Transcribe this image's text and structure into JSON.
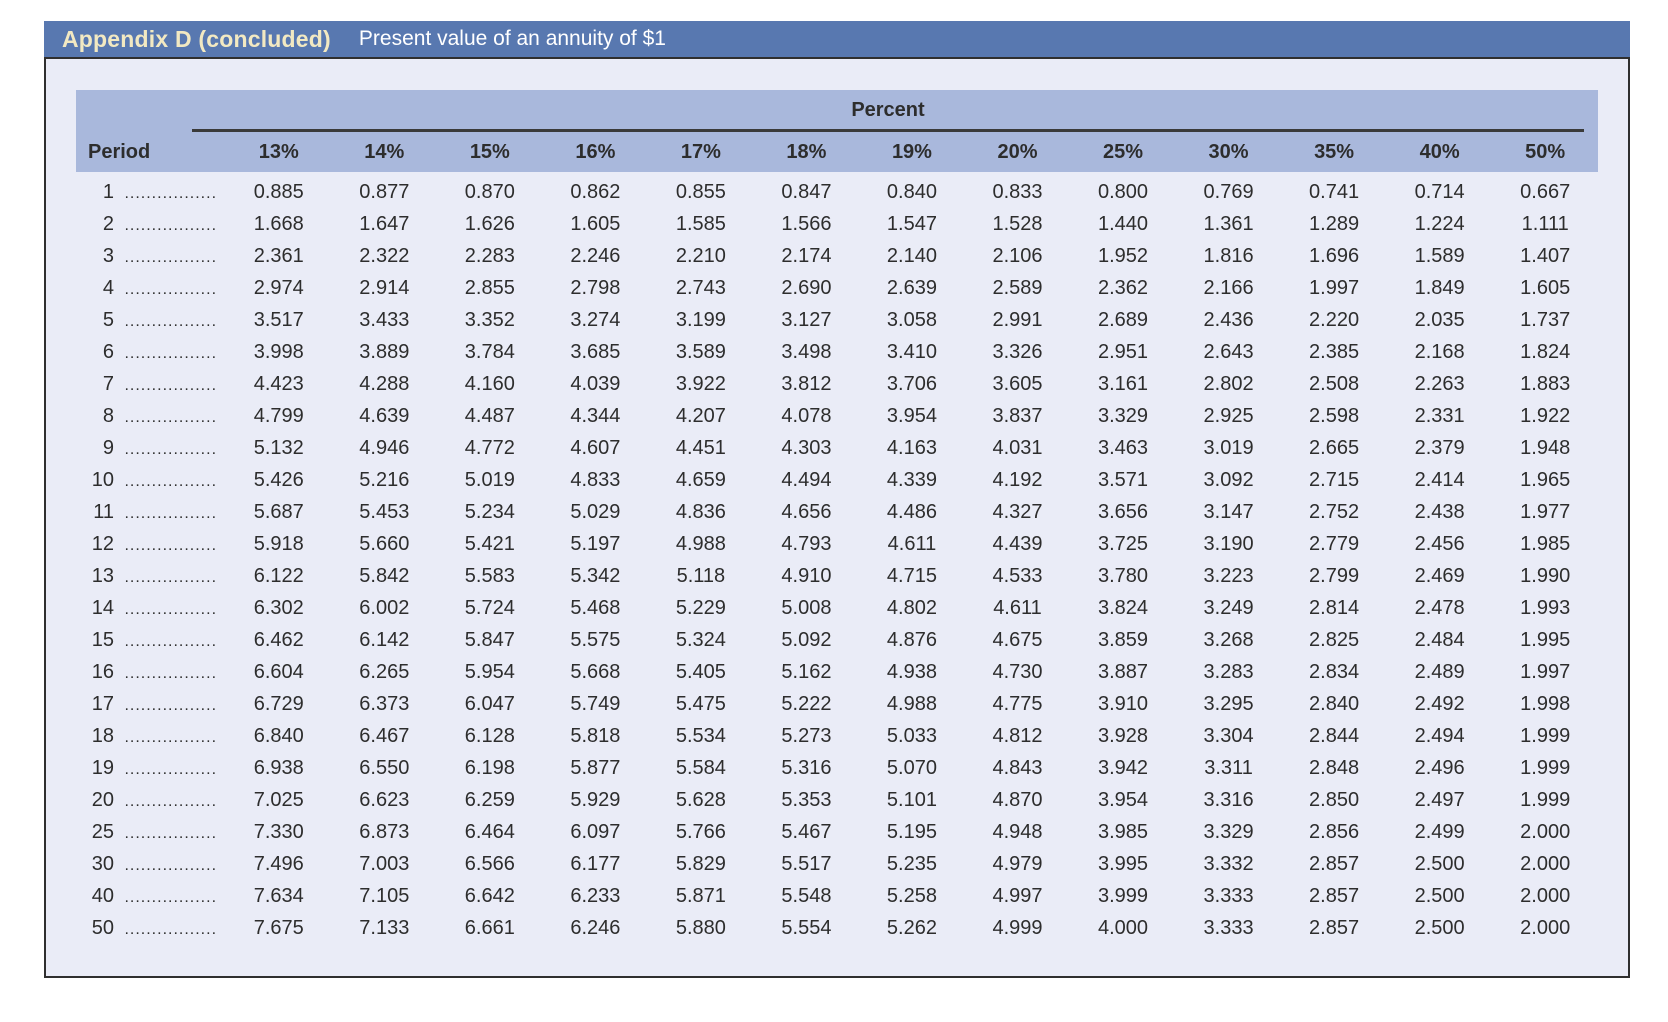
{
  "title_bar": {
    "title": "Appendix D (concluded)",
    "subtitle": "Present value of an annuity of $1"
  },
  "colors": {
    "bar_blue": "#5878b0",
    "header_periwinkle": "#a9b8dc",
    "panel_lavender": "#eaecf7",
    "title_cream": "#f2e9c2",
    "subtitle_white": "#ffffff",
    "text": "#2d2d2d",
    "border": "#2f2f2f"
  },
  "table": {
    "group_header": "Percent",
    "period_header": "Period",
    "rate_headers": [
      "13%",
      "14%",
      "15%",
      "16%",
      "17%",
      "18%",
      "19%",
      "20%",
      "25%",
      "30%",
      "35%",
      "40%",
      "50%"
    ],
    "leader_dots": ".................",
    "rows": [
      {
        "period": "1",
        "values": [
          "0.885",
          "0.877",
          "0.870",
          "0.862",
          "0.855",
          "0.847",
          "0.840",
          "0.833",
          "0.800",
          "0.769",
          "0.741",
          "0.714",
          "0.667"
        ]
      },
      {
        "period": "2",
        "values": [
          "1.668",
          "1.647",
          "1.626",
          "1.605",
          "1.585",
          "1.566",
          "1.547",
          "1.528",
          "1.440",
          "1.361",
          "1.289",
          "1.224",
          "1.111"
        ]
      },
      {
        "period": "3",
        "values": [
          "2.361",
          "2.322",
          "2.283",
          "2.246",
          "2.210",
          "2.174",
          "2.140",
          "2.106",
          "1.952",
          "1.816",
          "1.696",
          "1.589",
          "1.407"
        ]
      },
      {
        "period": "4",
        "values": [
          "2.974",
          "2.914",
          "2.855",
          "2.798",
          "2.743",
          "2.690",
          "2.639",
          "2.589",
          "2.362",
          "2.166",
          "1.997",
          "1.849",
          "1.605"
        ]
      },
      {
        "period": "5",
        "values": [
          "3.517",
          "3.433",
          "3.352",
          "3.274",
          "3.199",
          "3.127",
          "3.058",
          "2.991",
          "2.689",
          "2.436",
          "2.220",
          "2.035",
          "1.737"
        ]
      },
      {
        "period": "6",
        "values": [
          "3.998",
          "3.889",
          "3.784",
          "3.685",
          "3.589",
          "3.498",
          "3.410",
          "3.326",
          "2.951",
          "2.643",
          "2.385",
          "2.168",
          "1.824"
        ]
      },
      {
        "period": "7",
        "values": [
          "4.423",
          "4.288",
          "4.160",
          "4.039",
          "3.922",
          "3.812",
          "3.706",
          "3.605",
          "3.161",
          "2.802",
          "2.508",
          "2.263",
          "1.883"
        ]
      },
      {
        "period": "8",
        "values": [
          "4.799",
          "4.639",
          "4.487",
          "4.344",
          "4.207",
          "4.078",
          "3.954",
          "3.837",
          "3.329",
          "2.925",
          "2.598",
          "2.331",
          "1.922"
        ]
      },
      {
        "period": "9",
        "values": [
          "5.132",
          "4.946",
          "4.772",
          "4.607",
          "4.451",
          "4.303",
          "4.163",
          "4.031",
          "3.463",
          "3.019",
          "2.665",
          "2.379",
          "1.948"
        ]
      },
      {
        "period": "10",
        "values": [
          "5.426",
          "5.216",
          "5.019",
          "4.833",
          "4.659",
          "4.494",
          "4.339",
          "4.192",
          "3.571",
          "3.092",
          "2.715",
          "2.414",
          "1.965"
        ]
      },
      {
        "period": "11",
        "values": [
          "5.687",
          "5.453",
          "5.234",
          "5.029",
          "4.836",
          "4.656",
          "4.486",
          "4.327",
          "3.656",
          "3.147",
          "2.752",
          "2.438",
          "1.977"
        ]
      },
      {
        "period": "12",
        "values": [
          "5.918",
          "5.660",
          "5.421",
          "5.197",
          "4.988",
          "4.793",
          "4.611",
          "4.439",
          "3.725",
          "3.190",
          "2.779",
          "2.456",
          "1.985"
        ]
      },
      {
        "period": "13",
        "values": [
          "6.122",
          "5.842",
          "5.583",
          "5.342",
          "5.118",
          "4.910",
          "4.715",
          "4.533",
          "3.780",
          "3.223",
          "2.799",
          "2.469",
          "1.990"
        ]
      },
      {
        "period": "14",
        "values": [
          "6.302",
          "6.002",
          "5.724",
          "5.468",
          "5.229",
          "5.008",
          "4.802",
          "4.611",
          "3.824",
          "3.249",
          "2.814",
          "2.478",
          "1.993"
        ]
      },
      {
        "period": "15",
        "values": [
          "6.462",
          "6.142",
          "5.847",
          "5.575",
          "5.324",
          "5.092",
          "4.876",
          "4.675",
          "3.859",
          "3.268",
          "2.825",
          "2.484",
          "1.995"
        ]
      },
      {
        "period": "16",
        "values": [
          "6.604",
          "6.265",
          "5.954",
          "5.668",
          "5.405",
          "5.162",
          "4.938",
          "4.730",
          "3.887",
          "3.283",
          "2.834",
          "2.489",
          "1.997"
        ]
      },
      {
        "period": "17",
        "values": [
          "6.729",
          "6.373",
          "6.047",
          "5.749",
          "5.475",
          "5.222",
          "4.988",
          "4.775",
          "3.910",
          "3.295",
          "2.840",
          "2.492",
          "1.998"
        ]
      },
      {
        "period": "18",
        "values": [
          "6.840",
          "6.467",
          "6.128",
          "5.818",
          "5.534",
          "5.273",
          "5.033",
          "4.812",
          "3.928",
          "3.304",
          "2.844",
          "2.494",
          "1.999"
        ]
      },
      {
        "period": "19",
        "values": [
          "6.938",
          "6.550",
          "6.198",
          "5.877",
          "5.584",
          "5.316",
          "5.070",
          "4.843",
          "3.942",
          "3.311",
          "2.848",
          "2.496",
          "1.999"
        ]
      },
      {
        "period": "20",
        "values": [
          "7.025",
          "6.623",
          "6.259",
          "5.929",
          "5.628",
          "5.353",
          "5.101",
          "4.870",
          "3.954",
          "3.316",
          "2.850",
          "2.497",
          "1.999"
        ]
      },
      {
        "period": "25",
        "values": [
          "7.330",
          "6.873",
          "6.464",
          "6.097",
          "5.766",
          "5.467",
          "5.195",
          "4.948",
          "3.985",
          "3.329",
          "2.856",
          "2.499",
          "2.000"
        ]
      },
      {
        "period": "30",
        "values": [
          "7.496",
          "7.003",
          "6.566",
          "6.177",
          "5.829",
          "5.517",
          "5.235",
          "4.979",
          "3.995",
          "3.332",
          "2.857",
          "2.500",
          "2.000"
        ]
      },
      {
        "period": "40",
        "values": [
          "7.634",
          "7.105",
          "6.642",
          "6.233",
          "5.871",
          "5.548",
          "5.258",
          "4.997",
          "3.999",
          "3.333",
          "2.857",
          "2.500",
          "2.000"
        ]
      },
      {
        "period": "50",
        "values": [
          "7.675",
          "7.133",
          "6.661",
          "6.246",
          "5.880",
          "5.554",
          "5.262",
          "4.999",
          "4.000",
          "3.333",
          "2.857",
          "2.500",
          "2.000"
        ]
      }
    ]
  }
}
